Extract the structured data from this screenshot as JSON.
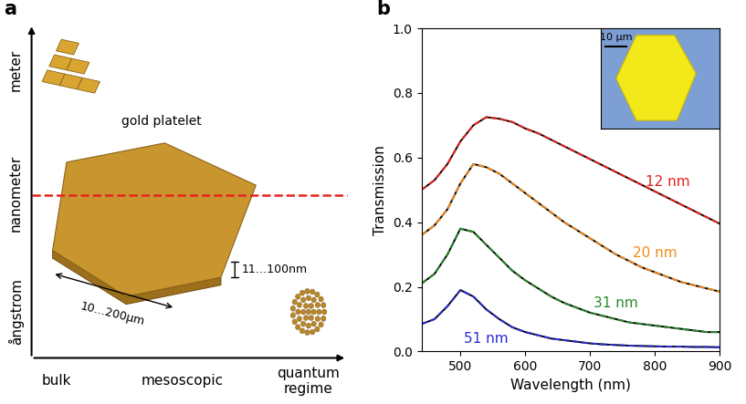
{
  "panel_labels": [
    "a",
    "b"
  ],
  "panel_a": {
    "scale_axis_labels": [
      "meter",
      "nanometer",
      "ångstrom"
    ],
    "regime_labels": [
      "bulk",
      "mesoscopic",
      "quantum\nregime"
    ],
    "object_label": "gold platelet",
    "width_label": "10…200µm",
    "thickness_label": "11…100nm"
  },
  "chart_data": {
    "type": "line",
    "xlabel": "Wavelength (nm)",
    "ylabel": "Transmission",
    "x": [
      440,
      460,
      480,
      500,
      520,
      540,
      560,
      580,
      600,
      620,
      640,
      660,
      680,
      700,
      720,
      740,
      760,
      780,
      800,
      820,
      840,
      860,
      880,
      900
    ],
    "xlim": [
      440,
      900
    ],
    "ylim": [
      0,
      1
    ],
    "xticks": [
      500,
      600,
      700,
      800,
      900
    ],
    "yticks": [
      {
        "value": 0,
        "label": "0.0"
      },
      {
        "value": 0.2,
        "label": "0.2"
      },
      {
        "value": 0.4,
        "label": "0.4"
      },
      {
        "value": 0.6,
        "label": "0.6"
      },
      {
        "value": 0.8,
        "label": "0.8"
      },
      {
        "value": 1,
        "label": "1.0"
      }
    ],
    "series": [
      {
        "name": "12 nm",
        "color": "#e8231f",
        "line_style": "dashed",
        "values": [
          0.5,
          0.53,
          0.58,
          0.65,
          0.7,
          0.725,
          0.72,
          0.71,
          0.69,
          0.675,
          0.655,
          0.635,
          0.615,
          0.595,
          0.575,
          0.555,
          0.535,
          0.515,
          0.495,
          0.475,
          0.455,
          0.435,
          0.415,
          0.395
        ]
      },
      {
        "name": "20 nm",
        "color": "#f28c1a",
        "line_style": "dashed",
        "values": [
          0.36,
          0.39,
          0.44,
          0.52,
          0.58,
          0.57,
          0.55,
          0.52,
          0.49,
          0.46,
          0.43,
          0.4,
          0.375,
          0.35,
          0.325,
          0.3,
          0.28,
          0.26,
          0.245,
          0.23,
          0.215,
          0.205,
          0.195,
          0.185
        ]
      },
      {
        "name": "31 nm",
        "color": "#2a8a2a",
        "line_style": "dashed",
        "values": [
          0.21,
          0.24,
          0.3,
          0.38,
          0.37,
          0.33,
          0.29,
          0.25,
          0.22,
          0.195,
          0.17,
          0.15,
          0.135,
          0.12,
          0.11,
          0.1,
          0.09,
          0.085,
          0.08,
          0.075,
          0.07,
          0.065,
          0.06,
          0.06
        ]
      },
      {
        "name": "51 nm",
        "color": "#2b2bd6",
        "line_style": "dashed",
        "values": [
          0.085,
          0.1,
          0.14,
          0.19,
          0.17,
          0.13,
          0.1,
          0.075,
          0.06,
          0.05,
          0.04,
          0.035,
          0.03,
          0.025,
          0.022,
          0.02,
          0.018,
          0.017,
          0.016,
          0.015,
          0.015,
          0.014,
          0.014,
          0.013
        ]
      }
    ],
    "inset": {
      "scale_bar": "10 µm"
    }
  }
}
